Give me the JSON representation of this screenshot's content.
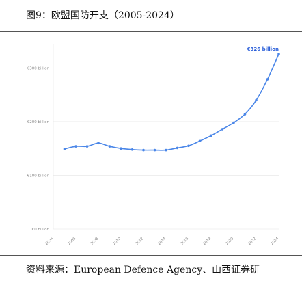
{
  "figure": {
    "title": "图9：欧盟国防开支（2005-2024）",
    "source": "资料来源：European Defence Agency、山西证券研"
  },
  "colors": {
    "line": "#4a86e8",
    "callout": "#2b5fd9",
    "grid": "#e4e4e4",
    "tick": "#8a8a8a"
  },
  "chart_data": {
    "type": "line",
    "title": "",
    "xlabel": "",
    "ylabel": "",
    "x": [
      2005,
      2006,
      2007,
      2008,
      2009,
      2010,
      2011,
      2012,
      2013,
      2014,
      2015,
      2016,
      2017,
      2018,
      2019,
      2020,
      2021,
      2022,
      2023,
      2024
    ],
    "series": [
      {
        "values": [
          149,
          154,
          154,
          160,
          154,
          150,
          148,
          147,
          147,
          147,
          151,
          155,
          164,
          174,
          186,
          198,
          214,
          240,
          279,
          326
        ]
      }
    ],
    "xlim": [
      2004,
      2024
    ],
    "ylim": [
      0,
      326
    ],
    "y_ticks": [
      0,
      100,
      200,
      300
    ],
    "y_tick_labels": [
      "€0 billion",
      "€100 billion",
      "€200 billion",
      "€300 billion"
    ],
    "x_ticks": [
      2004,
      2006,
      2008,
      2010,
      2012,
      2014,
      2016,
      2018,
      2020,
      2022,
      2024
    ],
    "x_tick_labels": [
      "2004",
      "2006",
      "2008",
      "2010",
      "2012",
      "2014",
      "2016",
      "2018",
      "2020",
      "2022",
      "2024"
    ],
    "grid": "horizontal",
    "legend": "none",
    "annotation": {
      "text": "€326 billion",
      "x": 2024,
      "y": 326
    }
  }
}
